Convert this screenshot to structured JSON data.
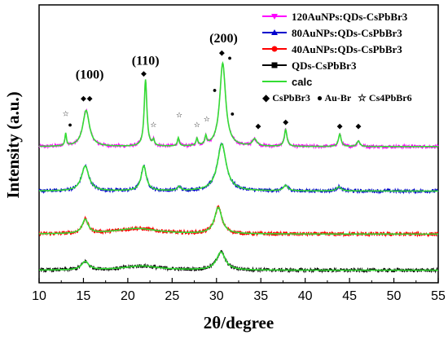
{
  "chart_data": {
    "type": "line",
    "xlabel": "2θ/degree",
    "ylabel": "Intensity (a.u.)",
    "xlim": [
      10,
      55
    ],
    "x_ticks": [
      10,
      15,
      20,
      25,
      30,
      35,
      40,
      45,
      50,
      55
    ],
    "legend_position": "top-right",
    "series": [
      {
        "name": "120AuNPs:QDs-CsPbBr3",
        "color": "#ff00ff",
        "marker": "triangle-down",
        "baseline": 4.9,
        "noise": 0.06,
        "peaks": [
          [
            13.0,
            0.45,
            0.1
          ],
          [
            15.3,
            1.3,
            0.45
          ],
          [
            22.0,
            2.4,
            0.18
          ],
          [
            22.9,
            0.2,
            0.12
          ],
          [
            25.7,
            0.3,
            0.12
          ],
          [
            27.8,
            0.25,
            0.12
          ],
          [
            28.8,
            0.3,
            0.12
          ],
          [
            30.7,
            3.0,
            0.4
          ],
          [
            34.3,
            0.25,
            0.3
          ],
          [
            37.8,
            0.6,
            0.18
          ],
          [
            43.9,
            0.45,
            0.18
          ],
          [
            46.0,
            0.2,
            0.2
          ]
        ]
      },
      {
        "name": "80AuNPs:QDs-CsPbBr3",
        "color": "#0000cc",
        "marker": "triangle-up",
        "baseline": 3.3,
        "noise": 0.06,
        "peaks": [
          [
            15.2,
            0.9,
            0.5
          ],
          [
            21.8,
            0.9,
            0.35
          ],
          [
            25.8,
            0.15,
            0.2
          ],
          [
            30.6,
            1.7,
            0.6
          ],
          [
            37.8,
            0.2,
            0.3
          ],
          [
            43.8,
            0.15,
            0.3
          ]
        ]
      },
      {
        "name": "40AuNPs:QDs-CsPbBr3",
        "color": "#ff0000",
        "marker": "circle",
        "baseline": 1.75,
        "noise": 0.07,
        "peaks": [
          [
            15.2,
            0.5,
            0.4
          ],
          [
            21.0,
            0.2,
            3.0
          ],
          [
            30.2,
            0.95,
            0.5
          ]
        ]
      },
      {
        "name": "QDs-CsPbBr3",
        "color": "#000000",
        "marker": "square",
        "baseline": 0.45,
        "noise": 0.06,
        "peaks": [
          [
            15.2,
            0.3,
            0.5
          ],
          [
            21.5,
            0.15,
            2.5
          ],
          [
            30.5,
            0.65,
            0.6
          ]
        ]
      }
    ],
    "calc_series": {
      "name": "calc",
      "color": "#33dd33"
    },
    "phase_legend": [
      {
        "symbol": "◆",
        "label": "CsPbBr3"
      },
      {
        "symbol": "●",
        "label": "Au-Br"
      },
      {
        "symbol": "☆",
        "label": "Cs4PbBr6"
      }
    ],
    "annotations": [
      {
        "text": "(100)",
        "x": 15.7,
        "y": 7.35
      },
      {
        "text": "(110)",
        "x": 22.0,
        "y": 7.85
      },
      {
        "text": "(200)",
        "x": 30.8,
        "y": 8.65
      }
    ],
    "phase_markers": [
      {
        "symbol": "◆",
        "x": 15.0,
        "y": 6.55
      },
      {
        "symbol": "◆",
        "x": 15.7,
        "y": 6.55
      },
      {
        "symbol": "◆",
        "x": 21.8,
        "y": 7.45
      },
      {
        "symbol": "◆",
        "x": 30.6,
        "y": 8.2
      },
      {
        "symbol": "◆",
        "x": 34.7,
        "y": 5.55
      },
      {
        "symbol": "◆",
        "x": 37.8,
        "y": 5.7
      },
      {
        "symbol": "◆",
        "x": 43.9,
        "y": 5.55
      },
      {
        "symbol": "◆",
        "x": 46.0,
        "y": 5.55
      },
      {
        "symbol": "●",
        "x": 13.5,
        "y": 5.6
      },
      {
        "symbol": "●",
        "x": 29.8,
        "y": 6.85
      },
      {
        "symbol": "●",
        "x": 31.5,
        "y": 8.0
      },
      {
        "symbol": "●",
        "x": 31.8,
        "y": 6.0
      },
      {
        "symbol": "☆",
        "x": 13.0,
        "y": 6.0
      },
      {
        "symbol": "☆",
        "x": 22.9,
        "y": 5.6
      },
      {
        "symbol": "☆",
        "x": 25.8,
        "y": 5.95
      },
      {
        "symbol": "☆",
        "x": 27.8,
        "y": 5.6
      },
      {
        "symbol": "☆",
        "x": 28.9,
        "y": 5.8
      }
    ]
  }
}
